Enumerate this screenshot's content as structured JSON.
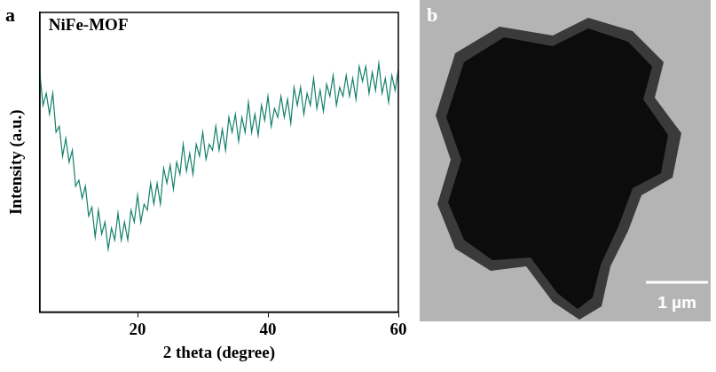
{
  "chart_data": {
    "type": "line",
    "title": "NiFe-MOF",
    "x_label": "2 theta (degree)",
    "y_label": "Intensity (a.u.)",
    "color": "#13806a",
    "x": [
      5,
      5.5,
      6,
      6.5,
      7,
      7.5,
      8,
      8.5,
      9,
      9.5,
      10,
      10.5,
      11,
      11.5,
      12,
      12.5,
      13,
      13.5,
      14,
      14.5,
      15,
      15.5,
      16,
      16.5,
      17,
      17.5,
      18,
      18.5,
      19,
      19.5,
      20,
      20.5,
      21,
      21.5,
      22,
      22.5,
      23,
      23.5,
      24,
      24.5,
      25,
      25.5,
      26,
      26.5,
      27,
      27.5,
      28,
      28.5,
      29,
      29.5,
      30,
      30.5,
      31,
      31.5,
      32,
      32.5,
      33,
      33.5,
      34,
      34.5,
      35,
      35.5,
      36,
      36.5,
      37,
      37.5,
      38,
      38.5,
      39,
      39.5,
      40,
      40.5,
      41,
      41.5,
      42,
      42.5,
      43,
      43.5,
      44,
      44.5,
      45,
      45.5,
      46,
      46.5,
      47,
      47.5,
      48,
      48.5,
      49,
      49.5,
      50,
      50.5,
      51,
      51.5,
      52,
      52.5,
      53,
      53.5,
      54,
      54.5,
      55,
      55.5,
      56,
      56.5,
      57,
      57.5,
      58,
      58.5,
      59,
      59.5,
      60
    ],
    "values": [
      80,
      69,
      73,
      66,
      73,
      60,
      62,
      52,
      58,
      50,
      54,
      42,
      44,
      38,
      42,
      32,
      35,
      25,
      34,
      26,
      30,
      21,
      28,
      24,
      33,
      24,
      30,
      24,
      34,
      30,
      39,
      30,
      36,
      34,
      43,
      36,
      43,
      36,
      48,
      43,
      49,
      41,
      50,
      46,
      56,
      47,
      53,
      46,
      56,
      52,
      60,
      51,
      56,
      54,
      62,
      54,
      61,
      54,
      65,
      60,
      66,
      57,
      65,
      60,
      70,
      60,
      66,
      59,
      69,
      64,
      72,
      62,
      68,
      65,
      72,
      65,
      71,
      63,
      75,
      69,
      75,
      66,
      73,
      69,
      78,
      68,
      74,
      67,
      76,
      72,
      79,
      69,
      75,
      72,
      79,
      72,
      78,
      71,
      82,
      77,
      82,
      73,
      80,
      74,
      83,
      73,
      78,
      70,
      79,
      74,
      81
    ],
    "xlim": [
      5,
      60
    ],
    "xticks": [
      20,
      40,
      60
    ],
    "ylim": [
      0,
      100
    ],
    "grid": false,
    "tick_labels": "x"
  },
  "panel_labels": [
    "a",
    "b"
  ],
  "image": {
    "scale_bar": "1 µm"
  }
}
